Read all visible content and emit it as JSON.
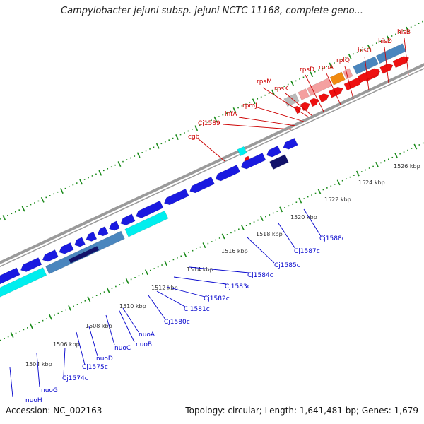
{
  "title": "Campylobacter jejuni subsp. jejuni NCTC 11168, complete geno...",
  "footer": {
    "accession": "Accession: NC_002163",
    "summary": "Topology: circular; Length: 1,641,481 bp; Genes: 1,679"
  },
  "scale": {
    "labels": [
      "1504 kbp",
      "1506 kbp",
      "1508 kbp",
      "1510 kbp",
      "1512 kbp",
      "1514 kbp",
      "1516 kbp",
      "1518 kbp",
      "1520 kbp",
      "1522 kbp",
      "1524 kbp",
      "1526 kbp"
    ]
  },
  "genes_forward": [
    "cgb",
    "Cj1589",
    "infA",
    "rpmJ",
    "rpsM",
    "rpsK",
    "rpsD",
    "rpoA",
    "rplQ",
    "hisG",
    "hisD",
    "hisB"
  ],
  "genes_reverse": [
    "nuoH",
    "nuoG",
    "Cj1574c",
    "Cj1575c",
    "nuoD",
    "nuoC",
    "nuoB",
    "nuoA",
    "Cj1580c",
    "Cj1581c",
    "Cj1582c",
    "Cj1583c",
    "Cj1584c",
    "Cj1585c",
    "Cj1587c",
    "Cj1588c"
  ],
  "colors": {
    "forward_label": "#cc0000",
    "reverse_label": "#0000cc",
    "gene_red": "#ee1111",
    "gene_blue": "#1a1ae0",
    "cds_cyan": "#00eeee",
    "cds_pink": "#f4a0a0",
    "cds_orange": "#f08a10",
    "cds_steelblue": "#4a86be",
    "cds_navy": "#12126a",
    "backbone": "#9a9a9a",
    "tick": "#1a8a1a"
  }
}
